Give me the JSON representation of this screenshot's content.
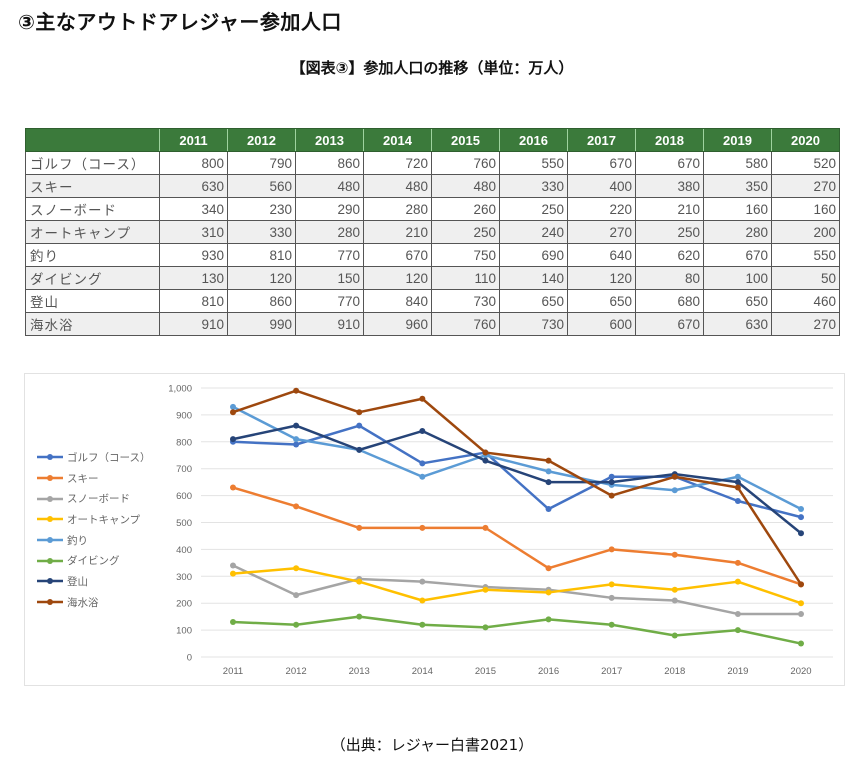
{
  "main_title": "③主なアウトドアレジャー参加人口",
  "sub_title": "【図表③】参加人口の推移（単位：万人）",
  "source": "（出典：レジャー白書2021）",
  "table": {
    "header_blank": "",
    "years": [
      "2011",
      "2012",
      "2013",
      "2014",
      "2015",
      "2016",
      "2017",
      "2018",
      "2019",
      "2020"
    ],
    "header_color": "#3b7a3b",
    "rows": [
      {
        "label": "ゴルフ（コース）",
        "values": [
          "800",
          "790",
          "860",
          "720",
          "760",
          "550",
          "670",
          "670",
          "580",
          "520"
        ]
      },
      {
        "label": "スキー",
        "values": [
          "630",
          "560",
          "480",
          "480",
          "480",
          "330",
          "400",
          "380",
          "350",
          "270"
        ]
      },
      {
        "label": "スノーボード",
        "values": [
          "340",
          "230",
          "290",
          "280",
          "260",
          "250",
          "220",
          "210",
          "160",
          "160"
        ]
      },
      {
        "label": "オートキャンプ",
        "values": [
          "310",
          "330",
          "280",
          "210",
          "250",
          "240",
          "270",
          "250",
          "280",
          "200"
        ]
      },
      {
        "label": "釣り",
        "values": [
          "930",
          "810",
          "770",
          "670",
          "750",
          "690",
          "640",
          "620",
          "670",
          "550"
        ]
      },
      {
        "label": "ダイビング",
        "values": [
          "130",
          "120",
          "150",
          "120",
          "110",
          "140",
          "120",
          "80",
          "100",
          "50"
        ]
      },
      {
        "label": "登山",
        "values": [
          "810",
          "860",
          "770",
          "840",
          "730",
          "650",
          "650",
          "680",
          "650",
          "460"
        ]
      },
      {
        "label": "海水浴",
        "values": [
          "910",
          "990",
          "910",
          "960",
          "760",
          "730",
          "600",
          "670",
          "630",
          "270"
        ]
      }
    ]
  },
  "chart_data": {
    "type": "line",
    "title": "",
    "xlabel": "",
    "ylabel": "",
    "x": [
      "2011",
      "2012",
      "2013",
      "2014",
      "2015",
      "2016",
      "2017",
      "2018",
      "2019",
      "2020"
    ],
    "ylim": [
      0,
      1000
    ],
    "yticks": [
      0,
      100,
      200,
      300,
      400,
      500,
      600,
      700,
      800,
      900,
      1000
    ],
    "ytick_labels": [
      "0",
      "100",
      "200",
      "300",
      "400",
      "500",
      "600",
      "700",
      "800",
      "900",
      "1,000"
    ],
    "grid": true,
    "legend_position": "left",
    "series": [
      {
        "name": "ゴルフ（コース）",
        "color": "#4472c4",
        "values": [
          800,
          790,
          860,
          720,
          760,
          550,
          670,
          670,
          580,
          520
        ]
      },
      {
        "name": "スキー",
        "color": "#ed7d31",
        "values": [
          630,
          560,
          480,
          480,
          480,
          330,
          400,
          380,
          350,
          270
        ]
      },
      {
        "name": "スノーボード",
        "color": "#a5a5a5",
        "values": [
          340,
          230,
          290,
          280,
          260,
          250,
          220,
          210,
          160,
          160
        ]
      },
      {
        "name": "オートキャンプ",
        "color": "#ffc000",
        "values": [
          310,
          330,
          280,
          210,
          250,
          240,
          270,
          250,
          280,
          200
        ]
      },
      {
        "name": "釣り",
        "color": "#5b9bd5",
        "values": [
          930,
          810,
          770,
          670,
          750,
          690,
          640,
          620,
          670,
          550
        ]
      },
      {
        "name": "ダイビング",
        "color": "#70ad47",
        "values": [
          130,
          120,
          150,
          120,
          110,
          140,
          120,
          80,
          100,
          50
        ]
      },
      {
        "name": "登山",
        "color": "#264478",
        "values": [
          810,
          860,
          770,
          840,
          730,
          650,
          650,
          680,
          650,
          460
        ]
      },
      {
        "name": "海水浴",
        "color": "#9e480e",
        "values": [
          910,
          990,
          910,
          960,
          760,
          730,
          600,
          670,
          630,
          270
        ]
      }
    ]
  }
}
